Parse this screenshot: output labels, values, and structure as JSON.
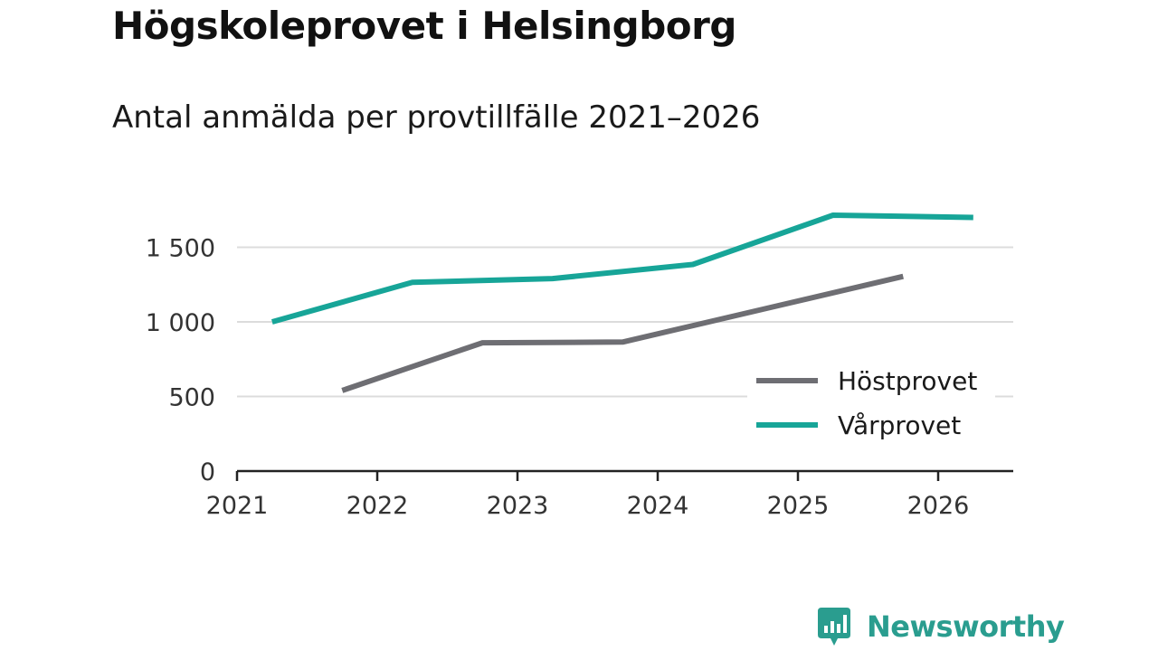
{
  "header": {
    "title": "Högskoleprovet i Helsingborg",
    "subtitle": "Antal anmälda per provtillfälle 2021–2026"
  },
  "brand": {
    "name": "Newsworthy",
    "logo_icon": "bar-chart-speech-bubble-icon",
    "color": "#2a9d8f"
  },
  "chart_data": {
    "type": "line",
    "title": "Högskoleprovet i Helsingborg",
    "subtitle": "Antal anmälda per provtillfälle 2021–2026",
    "xlabel": "",
    "ylabel": "",
    "xlim": [
      2021,
      2026.5
    ],
    "ylim": [
      0,
      1800
    ],
    "x_ticks": [
      2021,
      2022,
      2023,
      2024,
      2025,
      2026
    ],
    "x_tick_labels": [
      "2021",
      "2022",
      "2023",
      "2024",
      "2025",
      "2026"
    ],
    "y_ticks": [
      0,
      500,
      1000,
      1500
    ],
    "y_tick_labels": [
      "0",
      "500",
      "1 000",
      "1 500"
    ],
    "grid": true,
    "legend_position": "bottom-right",
    "series": [
      {
        "name": "Höstprovet",
        "color": "#6e6e73",
        "x": [
          2021.75,
          2022.75,
          2023.75,
          2024.75,
          2025.75
        ],
        "values": [
          540,
          860,
          865,
          1085,
          1305
        ]
      },
      {
        "name": "Vårprovet",
        "color": "#17a598",
        "x": [
          2021.25,
          2022.25,
          2023.25,
          2024.25,
          2025.25,
          2026.25
        ],
        "values": [
          1000,
          1265,
          1290,
          1385,
          1715,
          1700
        ]
      }
    ]
  }
}
